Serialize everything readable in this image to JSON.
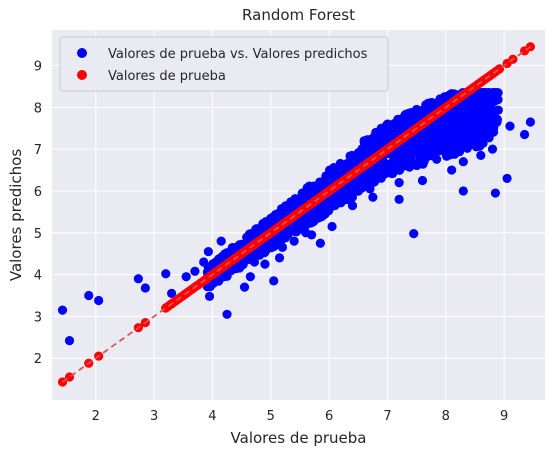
{
  "chart_data": {
    "type": "scatter",
    "title": "Random Forest",
    "xlabel": "Valores de prueba",
    "ylabel": "Valores predichos",
    "xlim": [
      1.25,
      9.7
    ],
    "ylim": [
      1.0,
      9.85
    ],
    "xticks": [
      "2",
      "3",
      "4",
      "5",
      "6",
      "7",
      "8",
      "9"
    ],
    "yticks": [
      "2",
      "3",
      "4",
      "5",
      "6",
      "7",
      "8",
      "9"
    ],
    "grid": true,
    "legend_position": "top-left",
    "series": [
      {
        "name": "Valores de prueba vs. Valores predichos",
        "color": "#0000ff",
        "points": [
          [
            1.43,
            3.15
          ],
          [
            1.55,
            2.42
          ],
          [
            1.88,
            3.5
          ],
          [
            2.05,
            3.38
          ],
          [
            2.73,
            3.9
          ],
          [
            2.85,
            3.68
          ],
          [
            3.2,
            4.02
          ],
          [
            3.3,
            3.55
          ],
          [
            3.55,
            3.95
          ],
          [
            3.7,
            4.08
          ],
          [
            3.85,
            4.3
          ],
          [
            3.93,
            4.55
          ],
          [
            3.95,
            3.48
          ],
          [
            4.08,
            4.3
          ],
          [
            4.15,
            4.8
          ],
          [
            4.25,
            3.05
          ],
          [
            4.3,
            4.15
          ],
          [
            4.4,
            4.55
          ],
          [
            4.5,
            4.4
          ],
          [
            4.6,
            4.85
          ],
          [
            4.72,
            4.3
          ],
          [
            4.8,
            4.7
          ],
          [
            4.9,
            4.25
          ],
          [
            4.95,
            4.95
          ],
          [
            5.05,
            3.85
          ],
          [
            5.1,
            5.0
          ],
          [
            5.2,
            4.65
          ],
          [
            5.3,
            5.3
          ],
          [
            5.4,
            4.8
          ],
          [
            5.5,
            5.35
          ],
          [
            5.6,
            5.0
          ],
          [
            5.7,
            5.75
          ],
          [
            5.8,
            5.5
          ],
          [
            5.9,
            6.05
          ],
          [
            6.0,
            5.7
          ],
          [
            6.1,
            6.45
          ],
          [
            6.2,
            5.85
          ],
          [
            6.3,
            6.65
          ],
          [
            6.4,
            6.1
          ],
          [
            6.5,
            6.25
          ],
          [
            6.6,
            7.2
          ],
          [
            6.7,
            6.05
          ],
          [
            6.8,
            7.4
          ],
          [
            6.9,
            6.4
          ],
          [
            7.0,
            7.6
          ],
          [
            7.1,
            6.55
          ],
          [
            7.2,
            6.2
          ],
          [
            7.3,
            7.75
          ],
          [
            7.4,
            6.8
          ],
          [
            7.45,
            4.98
          ],
          [
            7.5,
            7.95
          ],
          [
            7.6,
            6.75
          ],
          [
            7.7,
            8.1
          ],
          [
            7.8,
            6.9
          ],
          [
            7.9,
            8.2
          ],
          [
            8.0,
            7.0
          ],
          [
            8.1,
            6.5
          ],
          [
            8.2,
            8.3
          ],
          [
            8.3,
            6.7
          ],
          [
            8.4,
            7.1
          ],
          [
            8.5,
            8.0
          ],
          [
            8.6,
            6.85
          ],
          [
            8.7,
            7.4
          ],
          [
            8.8,
            7.0
          ],
          [
            8.85,
            5.95
          ],
          [
            9.05,
            6.3
          ],
          [
            9.1,
            7.55
          ],
          [
            9.35,
            7.35
          ],
          [
            9.45,
            7.65
          ],
          [
            5.7,
            4.95
          ],
          [
            6.05,
            5.15
          ],
          [
            6.4,
            5.65
          ],
          [
            6.75,
            5.85
          ],
          [
            7.2,
            5.8
          ],
          [
            7.6,
            6.25
          ],
          [
            8.3,
            6.0
          ],
          [
            4.55,
            3.7
          ],
          [
            4.65,
            3.95
          ],
          [
            5.15,
            4.4
          ],
          [
            5.85,
            4.75
          ]
        ]
      },
      {
        "name": "Valores de prueba",
        "color": "#ff0000",
        "points": [
          [
            1.43,
            1.43
          ],
          [
            1.55,
            1.55
          ],
          [
            1.88,
            1.88
          ],
          [
            2.05,
            2.05
          ],
          [
            2.73,
            2.73
          ],
          [
            2.85,
            2.85
          ],
          [
            3.2,
            3.2
          ],
          [
            3.3,
            3.3
          ],
          [
            9.05,
            9.05
          ],
          [
            9.15,
            9.15
          ],
          [
            9.35,
            9.35
          ],
          [
            9.45,
            9.45
          ]
        ],
        "dense_range": [
          3.2,
          8.95
        ]
      }
    ],
    "reference_line": {
      "from": [
        1.43,
        1.43
      ],
      "to": [
        9.45,
        9.45
      ],
      "color": "#d9534f",
      "style": "dashed"
    }
  }
}
